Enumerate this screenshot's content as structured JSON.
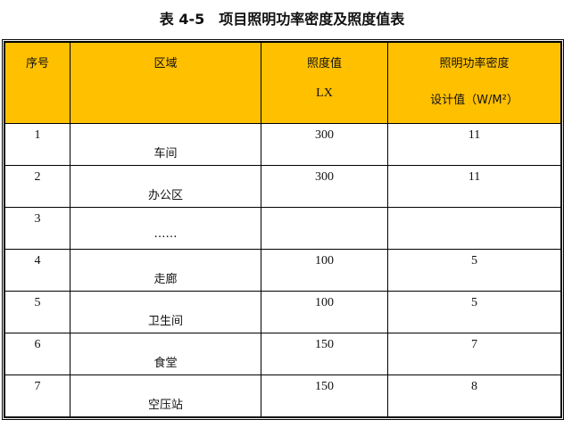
{
  "title": "表 4-5　项目照明功率密度及照度值表",
  "headers": {
    "seq": "序号",
    "area": "区域",
    "lux_1": "照度值",
    "lux_2": "LX",
    "lpd_1": "照明功率密度",
    "lpd_2": "设计值（W/M²）"
  },
  "header_color": "#ffc000",
  "rows": [
    {
      "seq": "1",
      "area": "车间",
      "lux": "300",
      "lpd": "11"
    },
    {
      "seq": "2",
      "area": "办公区",
      "lux": "300",
      "lpd": "11"
    },
    {
      "seq": "3",
      "area": "……",
      "lux": "",
      "lpd": ""
    },
    {
      "seq": "4",
      "area": "走廊",
      "lux": "100",
      "lpd": "5"
    },
    {
      "seq": "5",
      "area": "卫生间",
      "lux": "100",
      "lpd": "5"
    },
    {
      "seq": "6",
      "area": "食堂",
      "lux": "150",
      "lpd": "7"
    },
    {
      "seq": "7",
      "area": "空压站",
      "lux": "150",
      "lpd": "8"
    }
  ]
}
